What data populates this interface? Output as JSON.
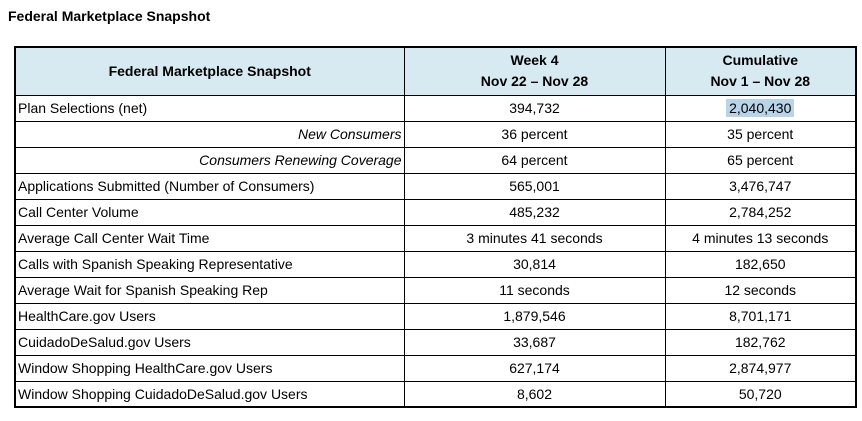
{
  "page": {
    "title": "Federal Marketplace Snapshot"
  },
  "table": {
    "header": {
      "label_column": "Federal Marketplace Snapshot",
      "columns": [
        {
          "line1": "Week 4",
          "line2": "Nov 22 – Nov 28"
        },
        {
          "line1": "Cumulative",
          "line2": "Nov 1 – Nov 28"
        }
      ]
    },
    "rows": [
      {
        "label": "Plan Selections (net)",
        "week4": "394,732",
        "cumulative": "2,040,430",
        "style": "normal",
        "cumulative_highlighted": true
      },
      {
        "label": "New Consumers",
        "week4": "36 percent",
        "cumulative": "35 percent",
        "style": "sub-italic",
        "cumulative_highlighted": false
      },
      {
        "label": "Consumers Renewing Coverage",
        "week4": "64 percent",
        "cumulative": "65 percent",
        "style": "sub-italic",
        "cumulative_highlighted": false
      },
      {
        "label": "Applications Submitted (Number of Consumers)",
        "week4": "565,001",
        "cumulative": "3,476,747",
        "style": "normal",
        "cumulative_highlighted": false
      },
      {
        "label": "Call Center Volume",
        "week4": "485,232",
        "cumulative": "2,784,252",
        "style": "normal",
        "cumulative_highlighted": false
      },
      {
        "label": "Average Call Center Wait Time",
        "week4": "3 minutes 41 seconds",
        "cumulative": "4 minutes 13 seconds",
        "style": "normal",
        "cumulative_highlighted": false
      },
      {
        "label": "Calls with Spanish Speaking Representative",
        "week4": "30,814",
        "cumulative": "182,650",
        "style": "normal",
        "cumulative_highlighted": false
      },
      {
        "label": "Average Wait for Spanish Speaking Rep",
        "week4": "11 seconds",
        "cumulative": "12 seconds",
        "style": "normal",
        "cumulative_highlighted": false
      },
      {
        "label": "HealthCare.gov Users",
        "week4": "1,879,546",
        "cumulative": "8,701,171",
        "style": "normal",
        "cumulative_highlighted": false
      },
      {
        "label": "CuidadoDeSalud.gov Users",
        "week4": "33,687",
        "cumulative": "182,762",
        "style": "normal",
        "cumulative_highlighted": false
      },
      {
        "label": "Window Shopping HealthCare.gov Users",
        "week4": "627,174",
        "cumulative": "2,874,977",
        "style": "normal",
        "cumulative_highlighted": false
      },
      {
        "label": "Window Shopping CuidadoDeSalud.gov Users",
        "week4": "8,602",
        "cumulative": "50,720",
        "style": "normal",
        "cumulative_highlighted": false
      }
    ]
  },
  "colors": {
    "header_bg": "#d7e9f1",
    "selection_highlight": "#b9d3e9",
    "border": "#000000",
    "text": "#000000"
  }
}
